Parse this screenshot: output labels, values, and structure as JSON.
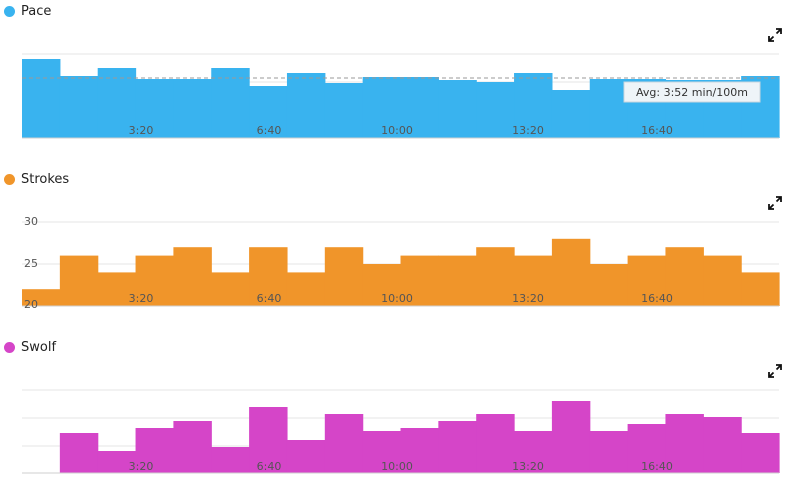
{
  "charts": {
    "pace": {
      "name": "Pace",
      "color": "#39b3ef",
      "expand_icon": "expand-icon",
      "avg_label": "Avg: 3:52 min/100m",
      "x_ticks": [
        "3:20",
        "6:40",
        "10:00",
        "13:20",
        "16:40"
      ]
    },
    "strokes": {
      "name": "Strokes",
      "color": "#f0952a",
      "expand_icon": "expand-icon",
      "y_ticks": [
        "30",
        "25",
        "20"
      ],
      "x_ticks": [
        "3:20",
        "6:40",
        "10:00",
        "13:20",
        "16:40"
      ]
    },
    "swolf": {
      "name": "Swolf",
      "color": "#d545c8",
      "expand_icon": "expand-icon",
      "x_ticks": [
        "3:20",
        "6:40",
        "10:00",
        "13:20",
        "16:40"
      ]
    }
  },
  "chart_data": [
    {
      "type": "area",
      "series": [
        {
          "name": "Pace",
          "values": [
            0.79,
            0.62,
            0.7,
            0.59,
            0.59,
            0.7,
            0.52,
            0.65,
            0.55,
            0.61,
            0.61,
            0.58,
            0.56,
            0.65,
            0.48,
            0.59,
            0.59,
            0.58,
            0.58,
            0.62
          ]
        },
        {
          "name": "avg",
          "values": [
            0.6
          ]
        }
      ],
      "x_ticks": [
        "3:20",
        "6:40",
        "10:00",
        "13:20",
        "16:40"
      ],
      "grid": true
    },
    {
      "type": "area",
      "series": [
        {
          "name": "Strokes",
          "values": [
            22,
            26,
            24,
            26,
            27,
            24,
            27,
            24,
            27,
            25,
            26,
            26,
            27,
            26,
            28,
            25,
            26,
            27,
            26,
            24
          ]
        }
      ],
      "x_ticks": [
        "3:20",
        "6:40",
        "10:00",
        "13:20",
        "16:40"
      ],
      "y_ticks": [
        30,
        25,
        20
      ],
      "ylim": [
        20,
        30
      ],
      "grid": true
    },
    {
      "type": "area",
      "series": [
        {
          "name": "Swolf",
          "values": [
            0,
            0.4,
            0.22,
            0.45,
            0.52,
            0.26,
            0.66,
            0.33,
            0.59,
            0.42,
            0.45,
            0.52,
            0.59,
            0.42,
            0.72,
            0.42,
            0.49,
            0.59,
            0.56,
            0.4
          ]
        }
      ],
      "x_ticks": [
        "3:20",
        "6:40",
        "10:00",
        "13:20",
        "16:40"
      ],
      "grid": true
    }
  ]
}
